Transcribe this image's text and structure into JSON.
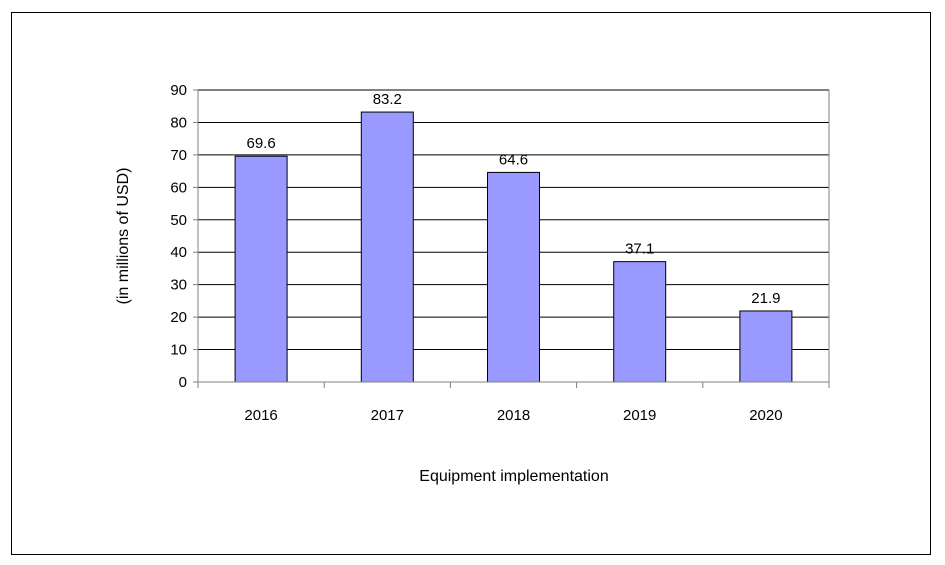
{
  "chart_data": {
    "type": "bar",
    "title": "",
    "xlabel": "Equipment implementation",
    "ylabel": "(in millions of USD)",
    "categories": [
      "2016",
      "2017",
      "2018",
      "2019",
      "2020"
    ],
    "values": [
      69.6,
      83.2,
      64.6,
      37.1,
      21.9
    ],
    "data_labels": [
      "69.6",
      "83.2",
      "64.6",
      "37.1",
      "21.9"
    ],
    "ylim": [
      0,
      90
    ],
    "yticks": [
      0,
      10,
      20,
      30,
      40,
      50,
      60,
      70,
      80,
      90
    ],
    "ytick_labels": [
      "0",
      "10",
      "20",
      "30",
      "40",
      "50",
      "60",
      "70",
      "80",
      "90"
    ],
    "grid": true,
    "legend": "none",
    "colors": {
      "bar": "#9999ff",
      "bar_border": "#000000",
      "grid": "#000000",
      "axis": "#808080"
    }
  }
}
